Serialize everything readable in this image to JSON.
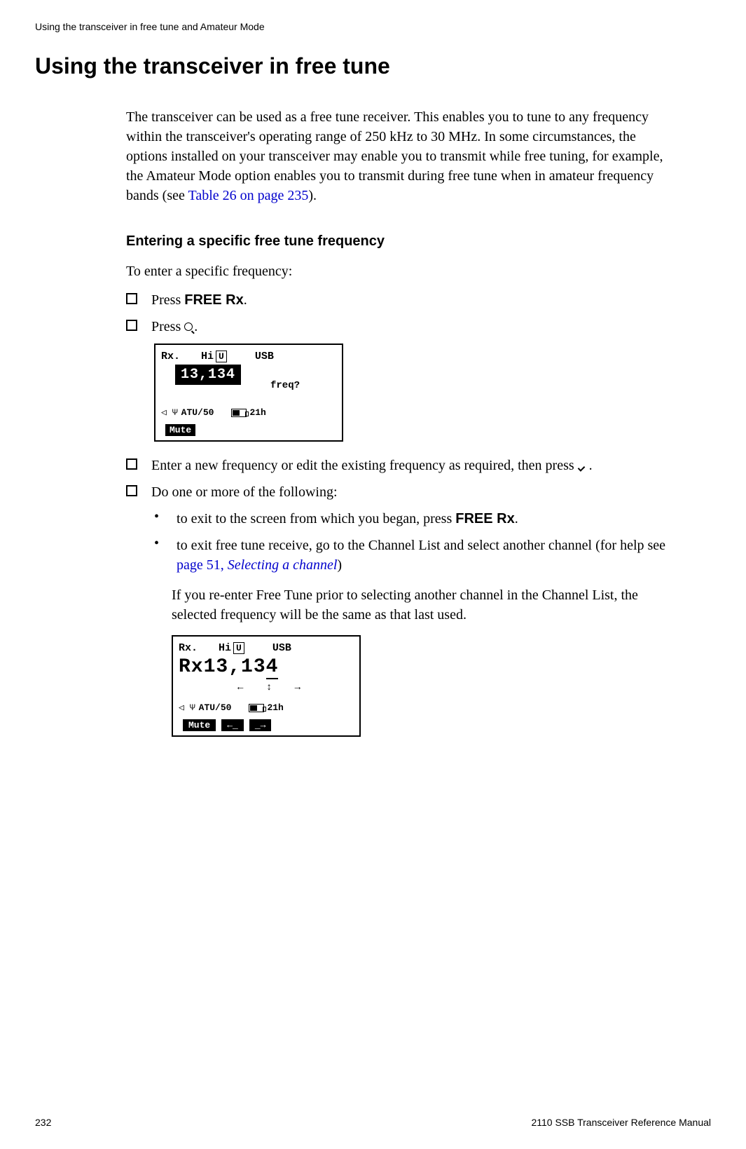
{
  "header": {
    "chapter_title": "Using the transceiver in free tune and Amateur Mode"
  },
  "main_heading": "Using the transceiver in free tune",
  "intro_paragraph": {
    "text_part1": "The transceiver can be used as a free tune receiver. This enables you to tune to any frequency within the transceiver's operating range of 250 kHz to 30 MHz. In some circumstances, the options installed on your transceiver may enable you to transmit while free tuning, for example, the Amateur Mode option enables you to transmit during free tune when in amateur frequency bands (see ",
    "link_text": "Table 26 on page 235",
    "text_part2": ")."
  },
  "section": {
    "heading": "Entering a specific free tune frequency",
    "intro": "To enter a specific frequency:",
    "steps": {
      "step1_prefix": "Press ",
      "step1_bold": "FREE Rx",
      "step1_suffix": ".",
      "step2_prefix": "Press ",
      "step2_suffix": ".",
      "step3_prefix": "Enter a new frequency or edit the existing frequency as required, then press ",
      "step3_suffix": ".",
      "step4": "Do one or more of the following:"
    },
    "bullets": {
      "bullet1_prefix": "to exit to the screen from which you began, press ",
      "bullet1_bold": "FREE Rx",
      "bullet1_suffix": ".",
      "bullet2_prefix": "to exit free tune receive, go to the Channel List and select another channel (for help see ",
      "bullet2_link1": "page 51, ",
      "bullet2_link2": "Selecting a channel",
      "bullet2_suffix": ")"
    },
    "follow_note": "If you re-enter Free Tune prior to selecting another channel in the Channel List, the selected frequency will be the same as that last used."
  },
  "lcd1": {
    "rx": "Rx.",
    "hi": "Hi",
    "u": "U",
    "usb": "USB",
    "freq": "13,134",
    "freq_label": "freq?",
    "atu": "ATU/50",
    "time": "21h",
    "mute": "Mute"
  },
  "lcd2": {
    "rx": "Rx.",
    "hi": "Hi",
    "u": "U",
    "usb": "USB",
    "freq_prefix": "Rx13,13",
    "freq_last": "4",
    "atu": "ATU/50",
    "time": "21h",
    "mute": "Mute",
    "btn_left": "←_",
    "btn_right": "_→"
  },
  "footer": {
    "page_number": "232",
    "manual_title": "2110 SSB Transceiver Reference Manual"
  },
  "colors": {
    "text": "#000000",
    "link": "#0000cc",
    "background": "#ffffff"
  }
}
